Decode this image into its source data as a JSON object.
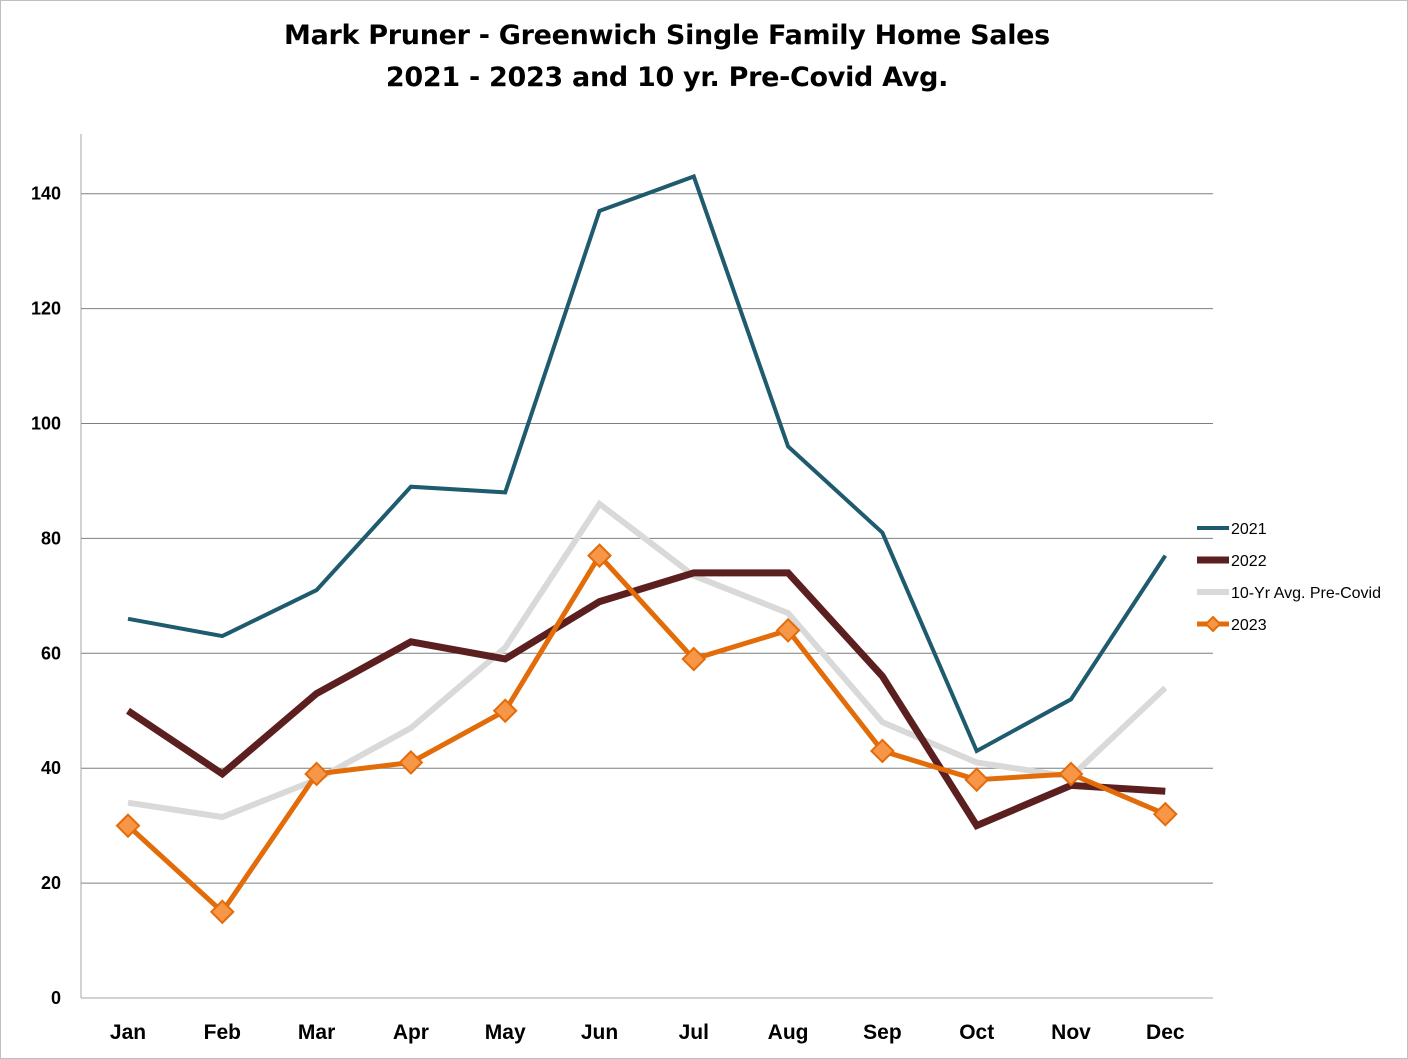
{
  "chart_data": {
    "type": "line",
    "title": "Mark Pruner - Greenwich Single Family Home Sales",
    "subtitle": "2021 - 2023 and 10 yr. Pre-Covid Avg.",
    "xlabel": "",
    "ylabel": "",
    "ylim": [
      0,
      150
    ],
    "yticks": [
      "0",
      "20",
      "40",
      "60",
      "80",
      "100",
      "120",
      "140"
    ],
    "grid": true,
    "legend_position": "right",
    "categories": [
      "Jan",
      "Feb",
      "Mar",
      "Apr",
      "May",
      "Jun",
      "Jul",
      "Aug",
      "Sep",
      "Oct",
      "Nov",
      "Dec"
    ],
    "series": [
      {
        "name": "2021",
        "color": "#1f5b6e",
        "values": [
          66,
          63,
          71,
          89,
          88,
          137,
          143,
          96,
          81,
          43,
          52,
          77
        ]
      },
      {
        "name": "2022",
        "color": "#5c1f1f",
        "values": [
          50,
          39,
          53,
          62,
          59,
          69,
          74,
          74,
          56,
          30,
          37,
          36
        ]
      },
      {
        "name": "10-Yr Avg. Pre-Covid",
        "color": "#d9d9d9",
        "values": [
          34,
          31.5,
          38,
          47,
          61,
          86,
          73.5,
          67,
          48,
          41,
          38.5,
          54
        ]
      },
      {
        "name": "2023",
        "color": "#e36c0a",
        "marker": "diamond",
        "values": [
          30,
          15,
          39,
          41,
          50,
          77,
          59,
          64,
          43,
          38,
          39,
          32
        ]
      }
    ]
  }
}
